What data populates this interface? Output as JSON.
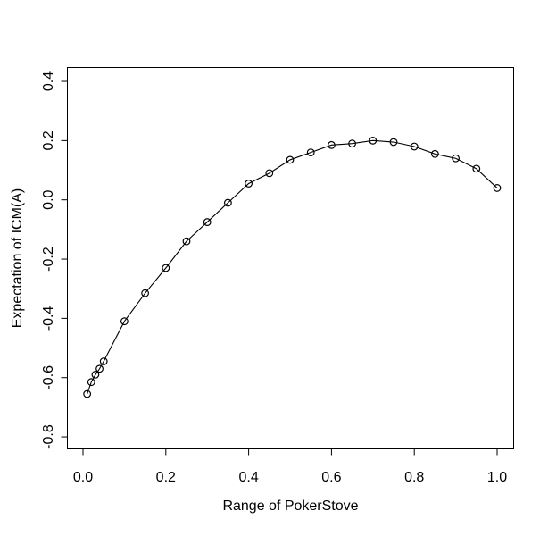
{
  "chart_data": {
    "type": "line",
    "title": "",
    "xlabel": "Range of PokerStove",
    "ylabel": "Expectation of ICM(A)",
    "x_tick_labels": [
      "0.0",
      "0.2",
      "0.4",
      "0.6",
      "0.8",
      "1.0"
    ],
    "x_tick_values": [
      0.0,
      0.2,
      0.4,
      0.6,
      0.8,
      1.0
    ],
    "y_tick_labels": [
      "0.4",
      "0.2",
      "0.0",
      "-0.2",
      "-0.4",
      "-0.6",
      "-0.8"
    ],
    "y_tick_values": [
      0.4,
      0.2,
      0.0,
      -0.2,
      -0.4,
      -0.6,
      -0.8
    ],
    "xlim": [
      -0.039,
      1.039
    ],
    "ylim": [
      -0.842,
      0.448
    ],
    "grid": false,
    "legend_position": "none",
    "marker": "open-circle",
    "line_color": "#000000",
    "background_color": "#ffffff",
    "series": [
      {
        "name": "Expectation of ICM(A)",
        "x": [
          0.01,
          0.02,
          0.03,
          0.04,
          0.05,
          0.1,
          0.15,
          0.2,
          0.25,
          0.3,
          0.35,
          0.4,
          0.45,
          0.5,
          0.55,
          0.6,
          0.65,
          0.7,
          0.75,
          0.8,
          0.85,
          0.9,
          0.95,
          1.0
        ],
        "y": [
          -0.655,
          -0.615,
          -0.59,
          -0.57,
          -0.545,
          -0.41,
          -0.315,
          -0.23,
          -0.14,
          -0.075,
          -0.01,
          0.055,
          0.09,
          0.135,
          0.16,
          0.185,
          0.19,
          0.2,
          0.195,
          0.18,
          0.155,
          0.14,
          0.105,
          0.04
        ]
      }
    ]
  }
}
